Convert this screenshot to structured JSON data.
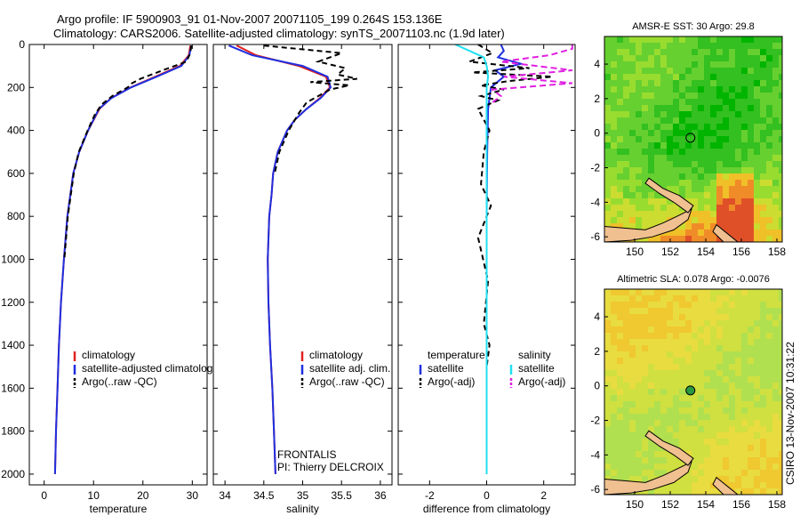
{
  "figure": {
    "title_line1": "Argo profile: IF 5900903_91 01-Nov-2007 20071105_199 0.264S 153.136E",
    "title_line2": "Climatology: CARS2006. Satellite-adjusted climatology: synTS_20071103.nc (1.9d later)",
    "side_credit": "CSIRO 13-Nov-2007 10:31:22",
    "colors": {
      "climatology": "#e02020",
      "satellite": "#1f2fe0",
      "argo": "#000000",
      "salinity_satellite": "#20e0f0",
      "salinity_argo": "#e020e0",
      "land": "#f0c090"
    }
  },
  "chart_data": [
    {
      "type": "line",
      "panel": "temperature",
      "xlabel": "temperature",
      "xlim": [
        -3,
        33
      ],
      "ylim": [
        2050,
        0
      ],
      "xticks": [
        0,
        10,
        20,
        30
      ],
      "yticks": [
        0,
        200,
        400,
        600,
        800,
        1000,
        1200,
        1400,
        1600,
        1800,
        2000
      ],
      "legend": [
        "climatology",
        "satellite-adjusted climatolog",
        "Argo(..raw -QC)"
      ],
      "series": [
        {
          "name": "climatology",
          "color": "#e02020",
          "dash": "",
          "depth": [
            5,
            50,
            100,
            150,
            200,
            250,
            300,
            400,
            500,
            600,
            800,
            1000,
            1200,
            1400,
            1600,
            1800,
            2000
          ],
          "values": [
            29.6,
            29.3,
            27.5,
            22.5,
            17.5,
            13.5,
            11.2,
            8.9,
            7.1,
            5.9,
            4.7,
            4.0,
            3.4,
            3.0,
            2.7,
            2.4,
            2.2
          ]
        },
        {
          "name": "satellite-adjusted climatology",
          "color": "#1f2fe0",
          "dash": "",
          "depth": [
            5,
            50,
            100,
            150,
            200,
            250,
            300,
            400,
            500,
            600,
            800,
            1000,
            1200,
            1400,
            1600,
            1800,
            2000
          ],
          "values": [
            29.8,
            29.4,
            27.8,
            22.8,
            17.6,
            13.6,
            11.1,
            8.9,
            7.1,
            5.9,
            4.7,
            4.0,
            3.4,
            3.0,
            2.7,
            2.4,
            2.2
          ]
        },
        {
          "name": "Argo(..raw -QC)",
          "color": "#000000",
          "dash": "6,4",
          "depth": [
            5,
            40,
            80,
            120,
            160,
            180,
            200,
            240,
            280,
            330,
            400,
            500,
            600,
            800,
            1000
          ],
          "values": [
            29.8,
            29.6,
            28.8,
            24.0,
            19.5,
            17.8,
            16.9,
            13.8,
            11.6,
            10.2,
            8.8,
            7.0,
            6.0,
            4.8,
            4.1
          ]
        }
      ]
    },
    {
      "type": "line",
      "panel": "salinity",
      "xlabel": "salinity",
      "xlim": [
        33.85,
        36.15
      ],
      "ylim": [
        2050,
        0
      ],
      "xticks": [
        34,
        34.5,
        35,
        35.5,
        36
      ],
      "yticks": [],
      "legend": [
        "climatology",
        "satellite adj. clim.",
        "Argo(..raw -QC)"
      ],
      "annotation": [
        "FRONTALIS",
        "PI: Thierry DELCROIX"
      ],
      "series": [
        {
          "name": "climatology",
          "color": "#e02020",
          "dash": "",
          "depth": [
            5,
            50,
            100,
            150,
            200,
            250,
            300,
            350,
            400,
            500,
            600,
            700,
            800,
            1000,
            1200,
            1400,
            1600,
            1800,
            2000
          ],
          "values": [
            34.15,
            34.4,
            34.95,
            35.3,
            35.35,
            35.22,
            35.05,
            34.9,
            34.8,
            34.68,
            34.62,
            34.6,
            34.57,
            34.55,
            34.56,
            34.58,
            34.61,
            34.63,
            34.65
          ]
        },
        {
          "name": "satellite adj. clim.",
          "color": "#1f2fe0",
          "dash": "",
          "depth": [
            5,
            50,
            100,
            150,
            200,
            250,
            300,
            350,
            400,
            500,
            600,
            700,
            800,
            1000,
            1200,
            1400,
            1600,
            1800,
            2000
          ],
          "values": [
            34.05,
            34.35,
            35.0,
            35.32,
            35.36,
            35.23,
            35.05,
            34.9,
            34.8,
            34.68,
            34.62,
            34.6,
            34.57,
            34.55,
            34.56,
            34.58,
            34.61,
            34.63,
            34.65
          ]
        },
        {
          "name": "Argo(..raw -QC)",
          "color": "#000000",
          "dash": "6,4",
          "depth": [
            5,
            40,
            80,
            110,
            140,
            160,
            175,
            190,
            210,
            240,
            270,
            320,
            400,
            500,
            600
          ],
          "values": [
            34.5,
            35.5,
            35.2,
            35.55,
            35.45,
            35.7,
            35.1,
            35.6,
            35.35,
            35.2,
            35.05,
            34.95,
            34.82,
            34.7,
            34.64
          ]
        }
      ]
    },
    {
      "type": "line",
      "panel": "difference",
      "xlabel": "difference from climatology",
      "xlim": [
        -3.1,
        3.1
      ],
      "ylim": [
        2050,
        0
      ],
      "xticks": [
        -2,
        0,
        2
      ],
      "yticks": [],
      "legend_temperature_title": "temperature",
      "legend_salinity_title": "salinity",
      "legend": [
        "satellite",
        "Argo(-adj)",
        "satellite",
        "Argo(-adj)"
      ],
      "series": [
        {
          "name": "temperature satellite",
          "color": "#1f2fe0",
          "dash": "",
          "depth": [
            0,
            30,
            60,
            90,
            120,
            150,
            200,
            300,
            500,
            800,
            1200,
            2000
          ],
          "values": [
            0.5,
            0.6,
            0.4,
            1.2,
            0.3,
            0.6,
            0.15,
            0.05,
            0.02,
            0.0,
            0.0,
            0.0
          ]
        },
        {
          "name": "temperature Argo(-adj)",
          "color": "#000000",
          "dash": "6,4",
          "depth": [
            0,
            40,
            80,
            110,
            130,
            150,
            170,
            190,
            210,
            240,
            260,
            300,
            400,
            500,
            650,
            750,
            900,
            1100,
            1300,
            1400,
            1500
          ],
          "values": [
            -0.3,
            0.2,
            -0.6,
            1.5,
            -0.5,
            2.3,
            0.8,
            -0.2,
            0.6,
            -0.2,
            0.4,
            -0.3,
            0.1,
            -0.1,
            -0.2,
            0.15,
            -0.3,
            0.05,
            -0.1,
            0.1,
            0.0
          ]
        },
        {
          "name": "salinity satellite",
          "color": "#20e0f0",
          "dash": "",
          "depth": [
            0,
            30,
            60,
            100,
            150,
            200,
            300,
            500,
            1000,
            2000
          ],
          "values": [
            -1.1,
            -0.6,
            -0.1,
            0.0,
            0.05,
            0.0,
            0.0,
            0.0,
            0.0,
            0.0
          ]
        },
        {
          "name": "salinity Argo(-adj)",
          "color": "#e020e0",
          "dash": "7,4",
          "depth": [
            0,
            20,
            50,
            80,
            120,
            150,
            180,
            210,
            240,
            270
          ],
          "values": [
            3.0,
            3.0,
            2.2,
            0.5,
            3.0,
            0.6,
            3.0,
            0.2,
            0.5,
            0.2
          ]
        }
      ]
    },
    {
      "type": "heatmap",
      "panel": "map-sst",
      "title": "AMSR-E SST: 30 Argo: 29.8",
      "xlim": [
        148.3,
        158.3
      ],
      "ylim": [
        -6.3,
        5.6
      ],
      "xticks": [
        150,
        152,
        154,
        156,
        158
      ],
      "yticks": [
        4,
        2,
        0,
        -2,
        -4,
        -6
      ],
      "float_position": [
        153.136,
        -0.264
      ],
      "palette": [
        "#00b400",
        "#33c020",
        "#66d030",
        "#99dc30",
        "#ccdc30",
        "#f0c028",
        "#f08c28",
        "#e05028"
      ]
    },
    {
      "type": "heatmap",
      "panel": "map-sla",
      "title": "Altimetric SLA: 0.078 Argo: -0.0076",
      "xlim": [
        148.3,
        158.3
      ],
      "ylim": [
        -6.3,
        5.6
      ],
      "xticks": [
        150,
        152,
        154,
        156,
        158
      ],
      "yticks": [
        4,
        2,
        0,
        -2,
        -4,
        -6
      ],
      "float_position": [
        153.136,
        -0.264
      ],
      "palette": [
        "#8cd850",
        "#b0e050",
        "#d0e040",
        "#e8dc40",
        "#f0c830",
        "#f0b028"
      ]
    }
  ]
}
